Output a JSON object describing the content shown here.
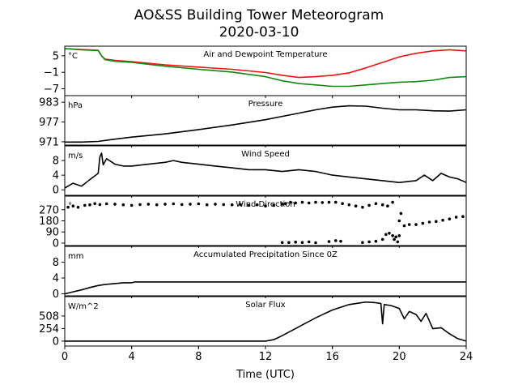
{
  "title": "AO&SS Building Tower Meteorogram",
  "subtitle": "2020-03-10",
  "xlabel": "Time (UTC)",
  "x_ticks": [
    0,
    4,
    8,
    12,
    16,
    20,
    24
  ],
  "colors": {
    "axes": "#000000",
    "temperature": "#ee1111",
    "dewpoint": "#118811",
    "line": "#000000"
  },
  "chart_data": [
    {
      "type": "line",
      "title": "Air and Dewpoint Temperature",
      "unit_label": "°C",
      "xlim": [
        0,
        24
      ],
      "ylim": [
        -9.5,
        8.5
      ],
      "y_ticks": [
        5,
        -1,
        -7
      ],
      "y_tick_labels": [
        "5",
        "−1",
        "−7"
      ],
      "series": [
        {
          "key": "temperature",
          "x": [
            0,
            1,
            2,
            2.2,
            2.4,
            3,
            4,
            6,
            8,
            10,
            12,
            13,
            14,
            15,
            16,
            17,
            18,
            19,
            20,
            21,
            22,
            23,
            24
          ],
          "y": [
            7.6,
            7.3,
            7.0,
            5.0,
            3.8,
            3.3,
            2.9,
            1.7,
            0.9,
            0.1,
            -1.1,
            -2.1,
            -2.9,
            -2.6,
            -2.1,
            -1.2,
            0.6,
            2.6,
            4.6,
            5.9,
            6.8,
            7.2,
            6.8
          ]
        },
        {
          "key": "dewpoint",
          "x": [
            0,
            1,
            2,
            2.2,
            2.4,
            3,
            4,
            6,
            8,
            10,
            12,
            13,
            14,
            15,
            16,
            17,
            18,
            19,
            20,
            21,
            22,
            23,
            24
          ],
          "y": [
            7.6,
            7.2,
            6.9,
            5.0,
            3.6,
            3.0,
            2.6,
            1.2,
            0.1,
            -0.9,
            -2.6,
            -4.1,
            -5.1,
            -5.6,
            -6.1,
            -6.1,
            -5.6,
            -5.1,
            -4.6,
            -4.4,
            -3.9,
            -2.9,
            -2.6
          ]
        }
      ]
    },
    {
      "type": "line",
      "title": "Pressure",
      "unit_label": "hPa",
      "xlim": [
        0,
        24
      ],
      "ylim": [
        970,
        985
      ],
      "y_ticks": [
        983,
        977,
        971
      ],
      "y_tick_labels": [
        "983",
        "977",
        "971"
      ],
      "series": [
        {
          "key": "line",
          "x": [
            0,
            1,
            2,
            3,
            4,
            6,
            8,
            10,
            12,
            13,
            14,
            15,
            16,
            17,
            18,
            19,
            20,
            21,
            22,
            23,
            24
          ],
          "y": [
            970.9,
            970.9,
            971.1,
            971.8,
            972.4,
            973.4,
            974.7,
            976.1,
            977.7,
            978.7,
            979.7,
            980.7,
            981.5,
            981.9,
            981.8,
            981.2,
            980.7,
            980.7,
            980.4,
            980.3,
            980.7
          ]
        }
      ]
    },
    {
      "type": "line",
      "title": "Wind Speed",
      "unit_label": "m/s",
      "xlim": [
        0,
        24
      ],
      "ylim": [
        -1.5,
        12
      ],
      "y_ticks": [
        8,
        4,
        0
      ],
      "y_tick_labels": [
        "8",
        "4",
        "0"
      ],
      "series": [
        {
          "key": "line",
          "x": [
            0,
            0.5,
            1,
            1.5,
            2,
            2.1,
            2.2,
            2.3,
            2.5,
            3,
            3.5,
            4,
            5,
            6,
            6.5,
            7,
            8,
            9,
            10,
            11,
            12,
            13,
            14,
            15,
            16,
            17,
            18,
            19,
            20,
            21,
            21.5,
            22,
            22.5,
            23,
            23.5,
            24
          ],
          "y": [
            0.5,
            1.8,
            1.0,
            2.8,
            4.5,
            9.0,
            10.0,
            6.8,
            8.5,
            7.0,
            6.5,
            6.5,
            7.0,
            7.5,
            8.0,
            7.5,
            7.0,
            6.5,
            6.0,
            5.5,
            5.5,
            5.0,
            5.5,
            5.0,
            4.0,
            3.5,
            3.0,
            2.5,
            2.0,
            2.5,
            4.0,
            2.5,
            4.5,
            3.5,
            3.0,
            2.0
          ]
        }
      ]
    },
    {
      "type": "scatter",
      "title": "Wind Direction",
      "unit_label": "°",
      "xlim": [
        0,
        24
      ],
      "ylim": [
        -20,
        380
      ],
      "y_ticks": [
        270,
        180,
        90,
        0
      ],
      "y_tick_labels": [
        "270",
        "180",
        "90",
        "0"
      ],
      "series": [
        {
          "key": "line",
          "x": [
            0.2,
            0.5,
            0.8,
            1.2,
            1.5,
            1.8,
            2.1,
            2.5,
            3,
            3.5,
            4,
            4.5,
            5,
            5.5,
            6,
            6.5,
            7,
            7.5,
            8,
            8.5,
            9,
            9.5,
            10,
            10.5,
            11,
            11.5,
            12,
            12.5,
            13,
            13.2,
            13.5,
            13.8,
            14.2,
            14.6,
            15,
            15.4,
            15.8,
            16.2,
            16.6,
            17,
            17.4,
            17.8,
            18.2,
            18.6,
            19,
            19.3,
            19.6,
            20,
            20.3,
            20.6,
            21,
            21.4,
            21.8,
            22.2,
            22.6,
            23,
            23.4,
            23.8,
            13.0,
            13.4,
            13.8,
            14.2,
            14.6,
            15.0,
            15.8,
            16.2,
            16.5,
            17.8,
            18.2,
            18.6,
            19.0,
            19.2,
            19.4,
            19.6,
            19.7,
            19.8,
            19.9,
            20.0,
            20.1
          ],
          "y": [
            290,
            300,
            290,
            305,
            310,
            320,
            312,
            318,
            315,
            310,
            305,
            312,
            315,
            310,
            315,
            318,
            312,
            315,
            318,
            310,
            315,
            312,
            310,
            312,
            305,
            310,
            300,
            305,
            315,
            320,
            330,
            325,
            330,
            325,
            330,
            328,
            330,
            330,
            320,
            310,
            300,
            290,
            305,
            320,
            310,
            300,
            330,
            180,
            140,
            150,
            150,
            160,
            170,
            175,
            185,
            195,
            210,
            215,
            5,
            5,
            8,
            5,
            10,
            3,
            12,
            20,
            15,
            5,
            10,
            15,
            30,
            70,
            80,
            60,
            30,
            50,
            10,
            60,
            240
          ]
        }
      ]
    },
    {
      "type": "line",
      "title": "Accumulated Precipitation Since 0Z",
      "unit_label": "mm",
      "xlim": [
        0,
        24
      ],
      "ylim": [
        -0.5,
        12
      ],
      "y_ticks": [
        8,
        4,
        0
      ],
      "y_tick_labels": [
        "8",
        "4",
        "0"
      ],
      "series": [
        {
          "key": "line",
          "x": [
            0,
            0.5,
            1,
            1.5,
            2,
            2.5,
            3,
            3.5,
            4,
            4.2,
            4.4,
            6,
            10,
            14,
            18,
            22,
            24
          ],
          "y": [
            0,
            0.5,
            1.0,
            1.6,
            2.1,
            2.4,
            2.6,
            2.8,
            2.8,
            3.0,
            3.0,
            3.0,
            3.0,
            3.0,
            3.0,
            3.0,
            3.0
          ]
        }
      ]
    },
    {
      "type": "line",
      "title": "Solar Flux",
      "unit_label": "W/m^2",
      "xlim": [
        0,
        24
      ],
      "ylim": [
        -100,
        900
      ],
      "y_ticks": [
        508,
        254,
        0
      ],
      "y_tick_labels": [
        "508",
        "254",
        "0"
      ],
      "series": [
        {
          "key": "line",
          "x": [
            0,
            6,
            12,
            12.5,
            13,
            14,
            15,
            16,
            17,
            18,
            18.5,
            18.9,
            19.0,
            19.1,
            19.5,
            20,
            20.3,
            20.6,
            21,
            21.3,
            21.6,
            22,
            22.5,
            23,
            23.5,
            24
          ],
          "y": [
            0,
            0,
            0,
            30,
            110,
            290,
            470,
            630,
            740,
            790,
            780,
            760,
            350,
            740,
            720,
            660,
            450,
            600,
            540,
            400,
            560,
            250,
            270,
            150,
            50,
            0
          ]
        }
      ]
    }
  ]
}
